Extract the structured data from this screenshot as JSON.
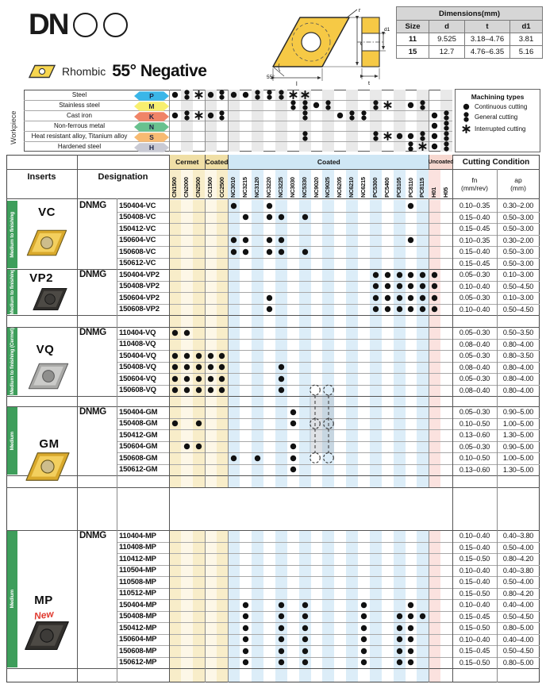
{
  "brand": {
    "code": "DN",
    "circles": 2
  },
  "subtitle": {
    "shape_label": "Rhombic",
    "angle_label": "55° Negative"
  },
  "dimensions_table": {
    "title": "Dimensions(mm)",
    "columns": [
      "Size",
      "d",
      "t",
      "d1"
    ],
    "rows": [
      [
        "11",
        "9.525",
        "3.18–4.76",
        "3.81"
      ],
      [
        "15",
        "12.7",
        "4.76–6.35",
        "5.16"
      ]
    ]
  },
  "diagram": {
    "labels": {
      "r": "r",
      "d": "d",
      "l": "l",
      "t": "t",
      "d1": "d1",
      "angle": "55°"
    }
  },
  "workpiece": {
    "side_label": "Workpiece",
    "rows": [
      {
        "material": "Steel",
        "code": "P",
        "color": "#3ab6e8",
        "marks": {
          "0": "c",
          "1": "g",
          "2": "i",
          "3": "c",
          "4": "g",
          "5": "c",
          "6": "c",
          "7": "g",
          "8": "g",
          "9": "g",
          "10": "i",
          "11": "i"
        }
      },
      {
        "material": "Stainless steel",
        "code": "M",
        "color": "#f8ef6f",
        "marks": {
          "10": "g",
          "11": "g",
          "12": "c",
          "13": "g",
          "17": "g",
          "18": "i",
          "20": "c",
          "21": "g"
        }
      },
      {
        "material": "Cast iron",
        "code": "K",
        "color": "#f08467",
        "marks": {
          "0": "c",
          "1": "g",
          "2": "i",
          "3": "c",
          "4": "g",
          "11": "g",
          "14": "c",
          "15": "g",
          "16": "g",
          "22": "c",
          "23": "g"
        }
      },
      {
        "material": "Non-ferrous metal",
        "code": "N",
        "color": "#69c18f",
        "marks": {
          "22": "c",
          "23": "g"
        }
      },
      {
        "material": "Heat resistant alloy, Titanium alloy",
        "code": "S",
        "color": "#f7ba72",
        "marks": {
          "11": "g",
          "17": "g",
          "18": "i",
          "19": "c",
          "20": "c",
          "21": "g",
          "22": "c",
          "23": "g"
        }
      },
      {
        "material": "Hardened steel",
        "code": "H",
        "color": "#c9cad4",
        "marks": {
          "20": "g",
          "21": "i",
          "22": "c",
          "23": "g"
        }
      }
    ]
  },
  "machining_types": {
    "title": "Machining types",
    "items": [
      {
        "sym": "c",
        "label": "Continuous cutting"
      },
      {
        "sym": "g",
        "label": "General cutting"
      },
      {
        "sym": "i",
        "label": "Interrupted cutting"
      }
    ]
  },
  "grades": {
    "groups": [
      {
        "label": "Cermet",
        "start": 0,
        "end": 2,
        "color": "#f0dfa6"
      },
      {
        "label": "Coated",
        "start": 3,
        "end": 4,
        "color": "#f0dfa6"
      },
      {
        "label": "Coated",
        "start": 5,
        "end": 21,
        "color": "#cfe7f5"
      },
      {
        "label": "Uncoated",
        "start": 22,
        "end": 23,
        "color": "#f6d8d0"
      }
    ],
    "names": [
      "CN1500",
      "CN2000",
      "CN2500",
      "CC1500",
      "CC2500",
      "NC3010",
      "NC3215",
      "NC3120",
      "NC3220",
      "NC3225",
      "NC3030",
      "NC5330",
      "NC9020",
      "NC9025",
      "NC6205",
      "NC6210",
      "NC6215",
      "PC5300",
      "PC5400",
      "PC8105",
      "PC8110",
      "PC8115",
      "H01",
      "H05"
    ]
  },
  "main_table": {
    "headers": {
      "inserts": "Inserts",
      "designation": "Designation",
      "cutting": "Cutting Condition",
      "fn": "fn",
      "fn_unit": "(mm/rev)",
      "ap": "ap",
      "ap_unit": "(mm)"
    },
    "blocks": [
      {
        "series": "VC",
        "application": "Medium to finishing",
        "prefix": "DNMG",
        "style": "gold",
        "rows": [
          {
            "code": "150404-VC",
            "dots": {
              "5": "c",
              "8": "c",
              "20": "c"
            },
            "fn": "0.10–0.35",
            "ap": "0.30–2.00"
          },
          {
            "code": "150408-VC",
            "dots": {
              "6": "c",
              "8": "c",
              "9": "c",
              "11": "c"
            },
            "fn": "0.15–0.40",
            "ap": "0.50–3.00"
          },
          {
            "code": "150412-VC",
            "dots": {},
            "fn": "0.15–0.45",
            "ap": "0.50–3.00"
          },
          {
            "code": "150604-VC",
            "dots": {
              "5": "c",
              "6": "c",
              "8": "c",
              "9": "c",
              "20": "c"
            },
            "fn": "0.10–0.35",
            "ap": "0.30–2.00"
          },
          {
            "code": "150608-VC",
            "dots": {
              "5": "c",
              "6": "c",
              "8": "c",
              "9": "c",
              "11": "c"
            },
            "fn": "0.15–0.40",
            "ap": "0.50–3.00"
          },
          {
            "code": "150612-VC",
            "dots": {},
            "fn": "0.15–0.45",
            "ap": "0.50–3.00"
          }
        ]
      },
      {
        "series": "VP2",
        "application": "Medium to finishing",
        "prefix": "DNMG",
        "style": "dark",
        "rows": [
          {
            "code": "150404-VP2",
            "dots": {
              "17": "c",
              "18": "c",
              "19": "c",
              "20": "c",
              "21": "c",
              "22": "c"
            },
            "fn": "0.05–0.30",
            "ap": "0.10–3.00"
          },
          {
            "code": "150408-VP2",
            "dots": {
              "17": "c",
              "18": "c",
              "19": "c",
              "20": "c",
              "21": "c",
              "22": "c"
            },
            "fn": "0.10–0.40",
            "ap": "0.50–4.50"
          },
          {
            "code": "150604-VP2",
            "dots": {
              "8": "c",
              "17": "c",
              "18": "c",
              "19": "c",
              "20": "c",
              "21": "c",
              "22": "c"
            },
            "fn": "0.05–0.30",
            "ap": "0.10–3.00"
          },
          {
            "code": "150608-VP2",
            "dots": {
              "8": "c",
              "17": "c",
              "18": "c",
              "19": "c",
              "20": "c",
              "21": "c",
              "22": "c"
            },
            "fn": "0.10–0.40",
            "ap": "0.50–4.50"
          }
        ]
      },
      {
        "series": "VQ",
        "application": "Medium to finishing (Cermet)",
        "prefix": "DNMG",
        "style": "gray",
        "rows": [
          {
            "code": "110404-VQ",
            "dots": {
              "0": "c",
              "1": "c"
            },
            "fn": "0.05–0.30",
            "ap": "0.50–3.50"
          },
          {
            "code": "110408-VQ",
            "dots": {},
            "fn": "0.08–0.40",
            "ap": "0.80–4.00"
          },
          {
            "code": "150404-VQ",
            "dots": {
              "0": "c",
              "1": "c",
              "2": "c",
              "3": "c",
              "4": "c"
            },
            "fn": "0.05–0.30",
            "ap": "0.80–3.50"
          },
          {
            "code": "150408-VQ",
            "dots": {
              "0": "c",
              "1": "c",
              "2": "c",
              "3": "c",
              "4": "c",
              "9": "c"
            },
            "fn": "0.08–0.40",
            "ap": "0.80–4.00"
          },
          {
            "code": "150604-VQ",
            "dots": {
              "0": "c",
              "1": "c",
              "2": "c",
              "3": "c",
              "4": "c",
              "9": "c"
            },
            "fn": "0.05–0.30",
            "ap": "0.80–4.00"
          },
          {
            "code": "150608-VQ",
            "dots": {
              "0": "c",
              "1": "c",
              "2": "c",
              "3": "c",
              "4": "c",
              "9": "c"
            },
            "fn": "0.08–0.40",
            "ap": "0.80–4.00"
          }
        ]
      },
      {
        "series": "GM",
        "application": "Medium",
        "prefix": "DNMG",
        "style": "gold",
        "rows": [
          {
            "code": "150404-GM",
            "dots": {
              "10": "c"
            },
            "fn": "0.05–0.30",
            "ap": "0.90–5.00"
          },
          {
            "code": "150408-GM",
            "dots": {
              "0": "c",
              "2": "c",
              "10": "c"
            },
            "fn": "0.10–0.50",
            "ap": "1.00–5.00"
          },
          {
            "code": "150412-GM",
            "dots": {},
            "fn": "0.13–0.60",
            "ap": "1.30–5.00"
          },
          {
            "code": "150604-GM",
            "dots": {
              "1": "c",
              "2": "c",
              "10": "c"
            },
            "fn": "0.05–0.30",
            "ap": "0.90–5.00"
          },
          {
            "code": "150608-GM",
            "dots": {
              "5": "c",
              "7": "c",
              "10": "c"
            },
            "fn": "0.10–0.50",
            "ap": "1.00–5.00"
          },
          {
            "code": "150612-GM",
            "dots": {
              "10": "c"
            },
            "fn": "0.13–0.60",
            "ap": "1.30–5.00"
          }
        ]
      },
      {
        "series": "MP",
        "application": "Medium",
        "prefix": "DNMG",
        "style": "dark",
        "badge": "New",
        "rows": [
          {
            "code": "110404-MP",
            "dots": {},
            "fn": "0.10–0.40",
            "ap": "0.40–3.80"
          },
          {
            "code": "110408-MP",
            "dots": {},
            "fn": "0.15–0.40",
            "ap": "0.50–4.00"
          },
          {
            "code": "110412-MP",
            "dots": {},
            "fn": "0.15–0.50",
            "ap": "0.80–4.20"
          },
          {
            "code": "110504-MP",
            "dots": {},
            "fn": "0.10–0.40",
            "ap": "0.40–3.80"
          },
          {
            "code": "110508-MP",
            "dots": {},
            "fn": "0.15–0.40",
            "ap": "0.50–4.00"
          },
          {
            "code": "110512-MP",
            "dots": {},
            "fn": "0.15–0.50",
            "ap": "0.80–4.20"
          },
          {
            "code": "150404-MP",
            "dots": {
              "6": "c",
              "9": "c",
              "11": "c",
              "16": "c",
              "20": "c"
            },
            "fn": "0.10–0.40",
            "ap": "0.40–4.00"
          },
          {
            "code": "150408-MP",
            "dots": {
              "6": "c",
              "9": "c",
              "11": "c",
              "16": "c",
              "19": "c",
              "20": "c",
              "21": "c"
            },
            "fn": "0.15–0.45",
            "ap": "0.50–4.50"
          },
          {
            "code": "150412-MP",
            "dots": {
              "6": "c",
              "9": "c",
              "11": "c",
              "16": "c",
              "19": "c",
              "20": "c"
            },
            "fn": "0.15–0.50",
            "ap": "0.80–5.00"
          },
          {
            "code": "150604-MP",
            "dots": {
              "6": "c",
              "9": "c",
              "11": "c",
              "16": "c",
              "19": "c",
              "20": "c"
            },
            "fn": "0.10–0.40",
            "ap": "0.40–4.00"
          },
          {
            "code": "150608-MP",
            "dots": {
              "6": "c",
              "9": "c",
              "11": "c",
              "16": "c",
              "19": "c",
              "20": "c"
            },
            "fn": "0.15–0.45",
            "ap": "0.50–4.50"
          },
          {
            "code": "150612-MP",
            "dots": {
              "6": "c",
              "9": "c",
              "11": "c",
              "16": "c",
              "19": "c",
              "20": "c"
            },
            "fn": "0.15–0.50",
            "ap": "0.80–5.00"
          }
        ]
      }
    ]
  }
}
